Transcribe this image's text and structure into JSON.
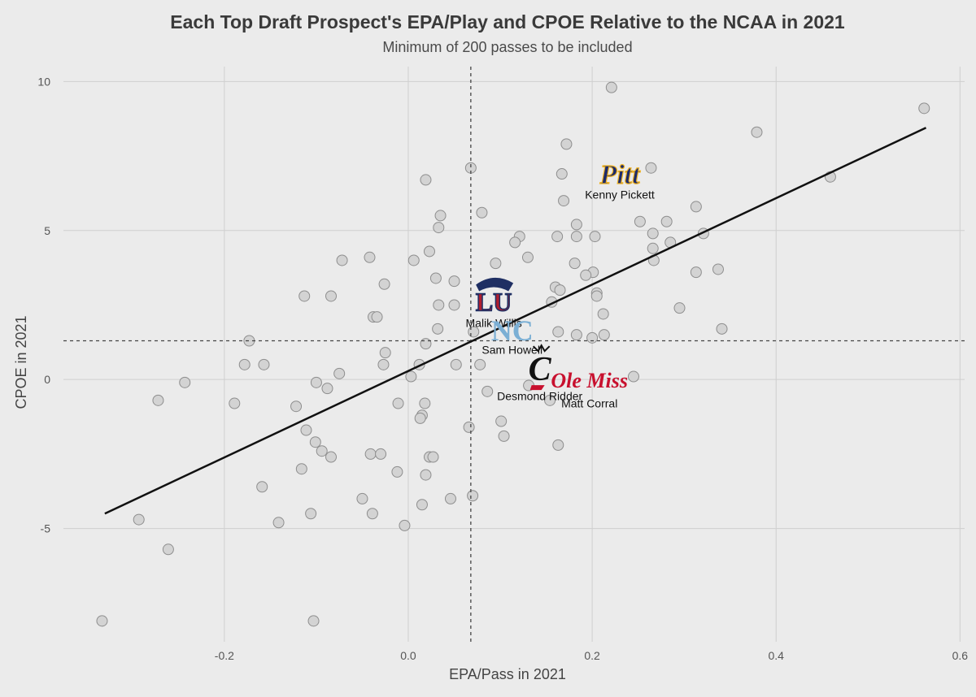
{
  "chart_data": {
    "type": "scatter",
    "title": "Each Top Draft Prospect's EPA/Play and CPOE Relative to the NCAA in 2021",
    "subtitle": "Minimum of 200 passes to be included",
    "xlabel": "EPA/Pass in 2021",
    "ylabel": "CPOE in 2021",
    "xlim": [
      -0.375,
      0.605
    ],
    "ylim": [
      -8.8,
      10.5
    ],
    "xticks": [
      -0.2,
      0.0,
      0.2,
      0.4,
      0.6
    ],
    "xtick_labels": [
      "-0.2",
      "0.0",
      "0.2",
      "0.4",
      "0.6"
    ],
    "yticks": [
      -5,
      0,
      5,
      10
    ],
    "ytick_labels": [
      "-5",
      "0",
      "5",
      "10"
    ],
    "grid": true,
    "ref_lines": {
      "x": 0.068,
      "y": 1.3
    },
    "fit_line": {
      "x": [
        -0.33,
        0.563
      ],
      "y": [
        -4.5,
        8.45
      ]
    },
    "points": [
      {
        "x": 0.221,
        "y": 9.8
      },
      {
        "x": 0.561,
        "y": 9.1
      },
      {
        "x": 0.379,
        "y": 8.3
      },
      {
        "x": 0.172,
        "y": 7.9
      },
      {
        "x": 0.068,
        "y": 7.1
      },
      {
        "x": 0.264,
        "y": 7.1
      },
      {
        "x": 0.167,
        "y": 6.9
      },
      {
        "x": 0.459,
        "y": 6.8
      },
      {
        "x": 0.019,
        "y": 6.7
      },
      {
        "x": 0.169,
        "y": 6.0
      },
      {
        "x": 0.08,
        "y": 5.6
      },
      {
        "x": 0.035,
        "y": 5.5
      },
      {
        "x": 0.313,
        "y": 5.8
      },
      {
        "x": 0.252,
        "y": 5.3
      },
      {
        "x": 0.281,
        "y": 5.3
      },
      {
        "x": 0.183,
        "y": 5.2
      },
      {
        "x": 0.033,
        "y": 5.1
      },
      {
        "x": 0.266,
        "y": 4.9
      },
      {
        "x": 0.321,
        "y": 4.9
      },
      {
        "x": 0.162,
        "y": 4.8
      },
      {
        "x": 0.183,
        "y": 4.8
      },
      {
        "x": 0.203,
        "y": 4.8
      },
      {
        "x": 0.121,
        "y": 4.8
      },
      {
        "x": 0.116,
        "y": 4.6
      },
      {
        "x": 0.285,
        "y": 4.6
      },
      {
        "x": 0.266,
        "y": 4.4
      },
      {
        "x": 0.023,
        "y": 4.3
      },
      {
        "x": 0.13,
        "y": 4.1
      },
      {
        "x": 0.267,
        "y": 4.0
      },
      {
        "x": -0.042,
        "y": 4.1
      },
      {
        "x": -0.072,
        "y": 4.0
      },
      {
        "x": 0.006,
        "y": 4.0
      },
      {
        "x": 0.095,
        "y": 3.9
      },
      {
        "x": 0.181,
        "y": 3.9
      },
      {
        "x": 0.337,
        "y": 3.7
      },
      {
        "x": 0.313,
        "y": 3.6
      },
      {
        "x": 0.201,
        "y": 3.6
      },
      {
        "x": 0.193,
        "y": 3.5
      },
      {
        "x": 0.03,
        "y": 3.4
      },
      {
        "x": 0.05,
        "y": 3.3
      },
      {
        "x": -0.026,
        "y": 3.2
      },
      {
        "x": 0.16,
        "y": 3.1
      },
      {
        "x": 0.165,
        "y": 3.0
      },
      {
        "x": 0.205,
        "y": 2.9
      },
      {
        "x": 0.205,
        "y": 2.8
      },
      {
        "x": -0.113,
        "y": 2.8
      },
      {
        "x": -0.084,
        "y": 2.8
      },
      {
        "x": 0.156,
        "y": 2.6
      },
      {
        "x": 0.033,
        "y": 2.5
      },
      {
        "x": 0.05,
        "y": 2.5
      },
      {
        "x": 0.295,
        "y": 2.4
      },
      {
        "x": 0.212,
        "y": 2.2
      },
      {
        "x": -0.038,
        "y": 2.1
      },
      {
        "x": -0.034,
        "y": 2.1
      },
      {
        "x": 0.032,
        "y": 1.7
      },
      {
        "x": 0.341,
        "y": 1.7
      },
      {
        "x": 0.071,
        "y": 1.6
      },
      {
        "x": 0.163,
        "y": 1.6
      },
      {
        "x": 0.183,
        "y": 1.5
      },
      {
        "x": 0.213,
        "y": 1.5
      },
      {
        "x": 0.2,
        "y": 1.4
      },
      {
        "x": -0.173,
        "y": 1.3
      },
      {
        "x": 0.019,
        "y": 1.2
      },
      {
        "x": -0.025,
        "y": 0.9
      },
      {
        "x": -0.178,
        "y": 0.5
      },
      {
        "x": -0.157,
        "y": 0.5
      },
      {
        "x": -0.027,
        "y": 0.5
      },
      {
        "x": 0.012,
        "y": 0.5
      },
      {
        "x": 0.052,
        "y": 0.5
      },
      {
        "x": 0.078,
        "y": 0.5
      },
      {
        "x": -0.075,
        "y": 0.2
      },
      {
        "x": 0.003,
        "y": 0.1
      },
      {
        "x": 0.245,
        "y": 0.1
      },
      {
        "x": -0.243,
        "y": -0.1
      },
      {
        "x": -0.1,
        "y": -0.1
      },
      {
        "x": 0.131,
        "y": -0.2
      },
      {
        "x": -0.088,
        "y": -0.3
      },
      {
        "x": 0.086,
        "y": -0.4
      },
      {
        "x": -0.272,
        "y": -0.7
      },
      {
        "x": 0.154,
        "y": -0.7
      },
      {
        "x": -0.189,
        "y": -0.8
      },
      {
        "x": -0.011,
        "y": -0.8
      },
      {
        "x": 0.018,
        "y": -0.8
      },
      {
        "x": -0.122,
        "y": -0.9
      },
      {
        "x": 0.015,
        "y": -1.2
      },
      {
        "x": 0.013,
        "y": -1.3
      },
      {
        "x": 0.101,
        "y": -1.4
      },
      {
        "x": 0.066,
        "y": -1.6
      },
      {
        "x": -0.111,
        "y": -1.7
      },
      {
        "x": 0.104,
        "y": -1.9
      },
      {
        "x": -0.101,
        "y": -2.1
      },
      {
        "x": 0.163,
        "y": -2.2
      },
      {
        "x": -0.094,
        "y": -2.4
      },
      {
        "x": -0.041,
        "y": -2.5
      },
      {
        "x": -0.03,
        "y": -2.5
      },
      {
        "x": -0.084,
        "y": -2.6
      },
      {
        "x": 0.023,
        "y": -2.6
      },
      {
        "x": 0.027,
        "y": -2.6
      },
      {
        "x": -0.116,
        "y": -3.0
      },
      {
        "x": -0.012,
        "y": -3.1
      },
      {
        "x": 0.019,
        "y": -3.2
      },
      {
        "x": -0.159,
        "y": -3.6
      },
      {
        "x": 0.07,
        "y": -3.9
      },
      {
        "x": -0.05,
        "y": -4.0
      },
      {
        "x": 0.046,
        "y": -4.0
      },
      {
        "x": 0.015,
        "y": -4.2
      },
      {
        "x": -0.106,
        "y": -4.5
      },
      {
        "x": -0.039,
        "y": -4.5
      },
      {
        "x": -0.293,
        "y": -4.7
      },
      {
        "x": -0.141,
        "y": -4.8
      },
      {
        "x": -0.004,
        "y": -4.9
      },
      {
        "x": -0.261,
        "y": -5.7
      },
      {
        "x": -0.333,
        "y": -8.1
      },
      {
        "x": -0.103,
        "y": -8.1
      }
    ],
    "players": [
      {
        "name": "Kenny Pickett",
        "school": "Pitt",
        "logo_text": "Pitt",
        "x": 0.23,
        "y": 6.9,
        "label_y": 6.2,
        "color": "#1c2a6b",
        "accent": "#f0b323"
      },
      {
        "name": "Malik Willis",
        "school": "Liberty",
        "logo_text": "LU",
        "x": 0.093,
        "y": 2.8,
        "label_y": 1.9,
        "color": "#b01e2f",
        "accent": "#1f2f63"
      },
      {
        "name": "Sam Howell",
        "school": "North Carolina",
        "logo_text": "NC",
        "x": 0.113,
        "y": 1.7,
        "label_y": 1.0,
        "color": "#7bafd4",
        "accent": "#ffffff"
      },
      {
        "name": "Desmond Ridder",
        "school": "Cincinnati",
        "logo_text": "C",
        "x": 0.143,
        "y": 0.3,
        "label_y": -0.55,
        "color": "#111111",
        "accent": "#c8102e"
      },
      {
        "name": "Matt Corral",
        "school": "Ole Miss",
        "logo_text": "Ole Miss",
        "x": 0.197,
        "y": 0.0,
        "label_y": -0.8,
        "color": "#c8102e",
        "accent": "#14213d"
      }
    ]
  }
}
